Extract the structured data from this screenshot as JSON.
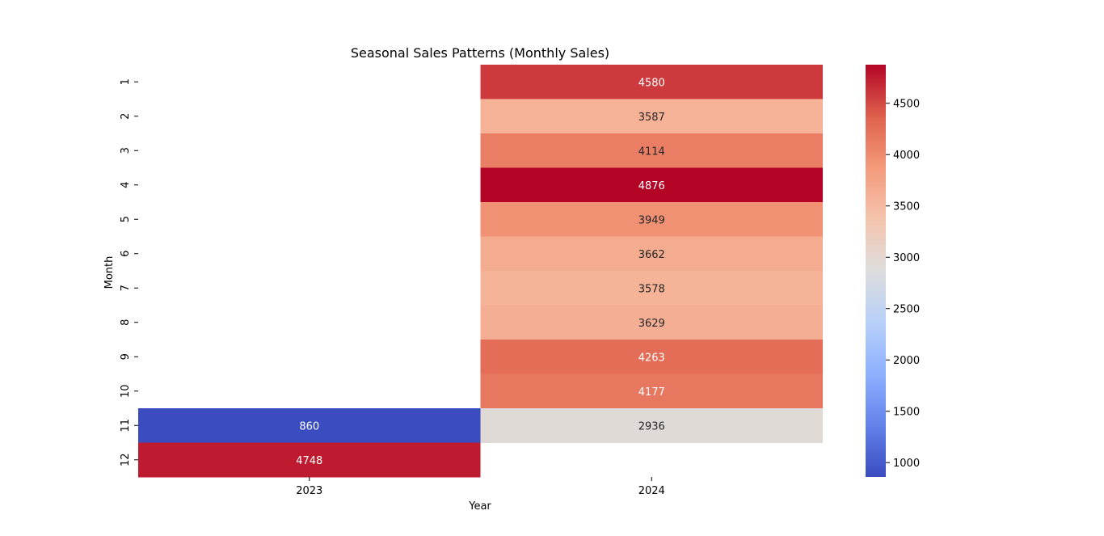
{
  "chart_data": {
    "type": "heatmap",
    "title": "Seasonal Sales Patterns (Monthly Sales)",
    "xlabel": "Year",
    "ylabel": "Month",
    "columns": [
      "2023",
      "2024"
    ],
    "rows": [
      "1",
      "2",
      "3",
      "4",
      "5",
      "6",
      "7",
      "8",
      "9",
      "10",
      "11",
      "12"
    ],
    "values": [
      [
        null,
        4580
      ],
      [
        null,
        3587
      ],
      [
        null,
        4114
      ],
      [
        null,
        4876
      ],
      [
        null,
        3949
      ],
      [
        null,
        3662
      ],
      [
        null,
        3578
      ],
      [
        null,
        3629
      ],
      [
        null,
        4263
      ],
      [
        null,
        4177
      ],
      [
        860,
        2936
      ],
      [
        4748,
        null
      ]
    ],
    "colormap": "coolwarm",
    "color_range": [
      860,
      4876
    ],
    "colorbar_ticks": [
      "1000",
      "1500",
      "2000",
      "2500",
      "3000",
      "3500",
      "4000",
      "4500"
    ],
    "annotated": true
  }
}
